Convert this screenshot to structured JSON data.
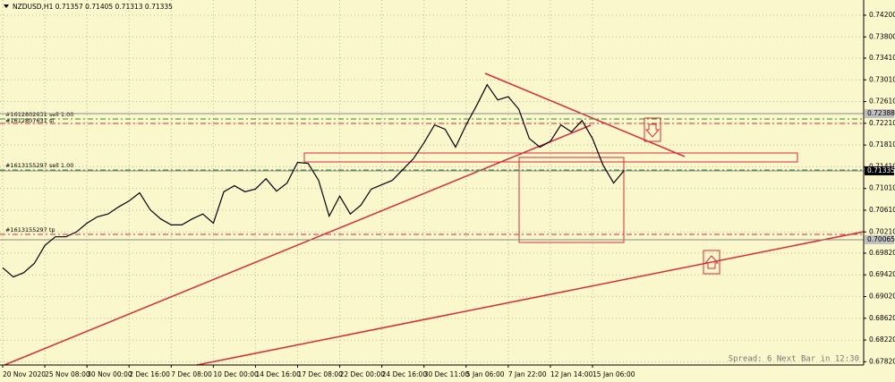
{
  "chart_data": {
    "type": "line",
    "title": "NZDUSD,H1  0.71357 0.71405 0.71313 0.71335",
    "status": "Spread: 6   Next Bar in 12:30",
    "categories": [
      "20 Nov 2020",
      null,
      null,
      null,
      "25 Nov 08:00",
      null,
      null,
      null,
      "30 Nov 00:00",
      null,
      null,
      null,
      "2 Dec 16:00",
      null,
      null,
      null,
      "7 Dec 08:00",
      null,
      null,
      null,
      "10 Dec 00:00",
      null,
      null,
      null,
      "14 Dec 16:00",
      null,
      null,
      null,
      "17 Dec 08:00",
      null,
      null,
      null,
      "22 Dec 00:00",
      null,
      null,
      null,
      "24 Dec 16:00",
      null,
      null,
      null,
      "30 Dec 11:00",
      null,
      null,
      null,
      "5 Jan 06:00",
      null,
      null,
      null,
      "7 Jan 22:00",
      null,
      null,
      null,
      "12 Jan 14:00",
      null,
      null,
      null,
      "15 Jan 06:00",
      null,
      null,
      null,
      null,
      null,
      null,
      null,
      null,
      null,
      null,
      null,
      null,
      null,
      null,
      null,
      null,
      null,
      null,
      null,
      null,
      null,
      null,
      null,
      null,
      null
    ],
    "series": [
      {
        "name": "NZDUSD,H1",
        "color": "#000000",
        "values": [
          0.6955,
          0.6938,
          0.6946,
          0.6963,
          0.6996,
          0.7012,
          0.7012,
          0.7021,
          0.7037,
          0.7049,
          0.7054,
          0.7067,
          0.7078,
          0.7093,
          0.7062,
          0.7045,
          0.7034,
          0.7034,
          0.7045,
          0.7054,
          0.7037,
          0.7095,
          0.7106,
          0.7095,
          0.71,
          0.7119,
          0.7096,
          0.7111,
          0.7149,
          0.7147,
          0.7116,
          0.705,
          0.7087,
          0.7054,
          0.707,
          0.71,
          0.7108,
          0.7116,
          0.7136,
          0.7156,
          0.7185,
          0.7218,
          0.721,
          0.7177,
          0.7218,
          0.7254,
          0.7292,
          0.7264,
          0.727,
          0.7247,
          0.7193,
          0.7177,
          0.7188,
          0.7218,
          0.7205,
          0.7226,
          0.7193,
          0.7144,
          0.7111,
          0.7134,
          null,
          null,
          null,
          null,
          null,
          null,
          null,
          null,
          null,
          null,
          null,
          null,
          null,
          null,
          null,
          null,
          null,
          null,
          null,
          null,
          null,
          null
        ]
      }
    ],
    "ylim": [
      0.6776,
      0.7448
    ],
    "yticks": [
      {
        "value": 0.742,
        "label": "0.74200"
      },
      {
        "value": 0.738,
        "label": "0.73800"
      },
      {
        "value": 0.7341,
        "label": "0.73410"
      },
      {
        "value": 0.7301,
        "label": "0.73010"
      },
      {
        "value": 0.7261,
        "label": "0.72610"
      },
      {
        "value": 0.7221,
        "label": "0.72210"
      },
      {
        "value": 0.7181,
        "label": "0.71810"
      },
      {
        "value": 0.7141,
        "label": "0.71410"
      },
      {
        "value": 0.7101,
        "label": "0.71010"
      },
      {
        "value": 0.7061,
        "label": "0.70610"
      },
      {
        "value": 0.7021,
        "label": "0.70210"
      },
      {
        "value": 0.6982,
        "label": "0.69820"
      },
      {
        "value": 0.6942,
        "label": "0.69420"
      },
      {
        "value": 0.6902,
        "label": "0.69020"
      },
      {
        "value": 0.6862,
        "label": "0.68620"
      },
      {
        "value": 0.6822,
        "label": "0.68220"
      },
      {
        "value": 0.6782,
        "label": "0.67820"
      }
    ],
    "levels": [
      0.72388,
      0.71335,
      0.70065
    ],
    "orders": [
      "#1612802631 sell 1.00",
      "#1612807631 sl",
      "#1613155297 sell 1.00",
      "#1613155297 tp"
    ],
    "grid": true
  }
}
